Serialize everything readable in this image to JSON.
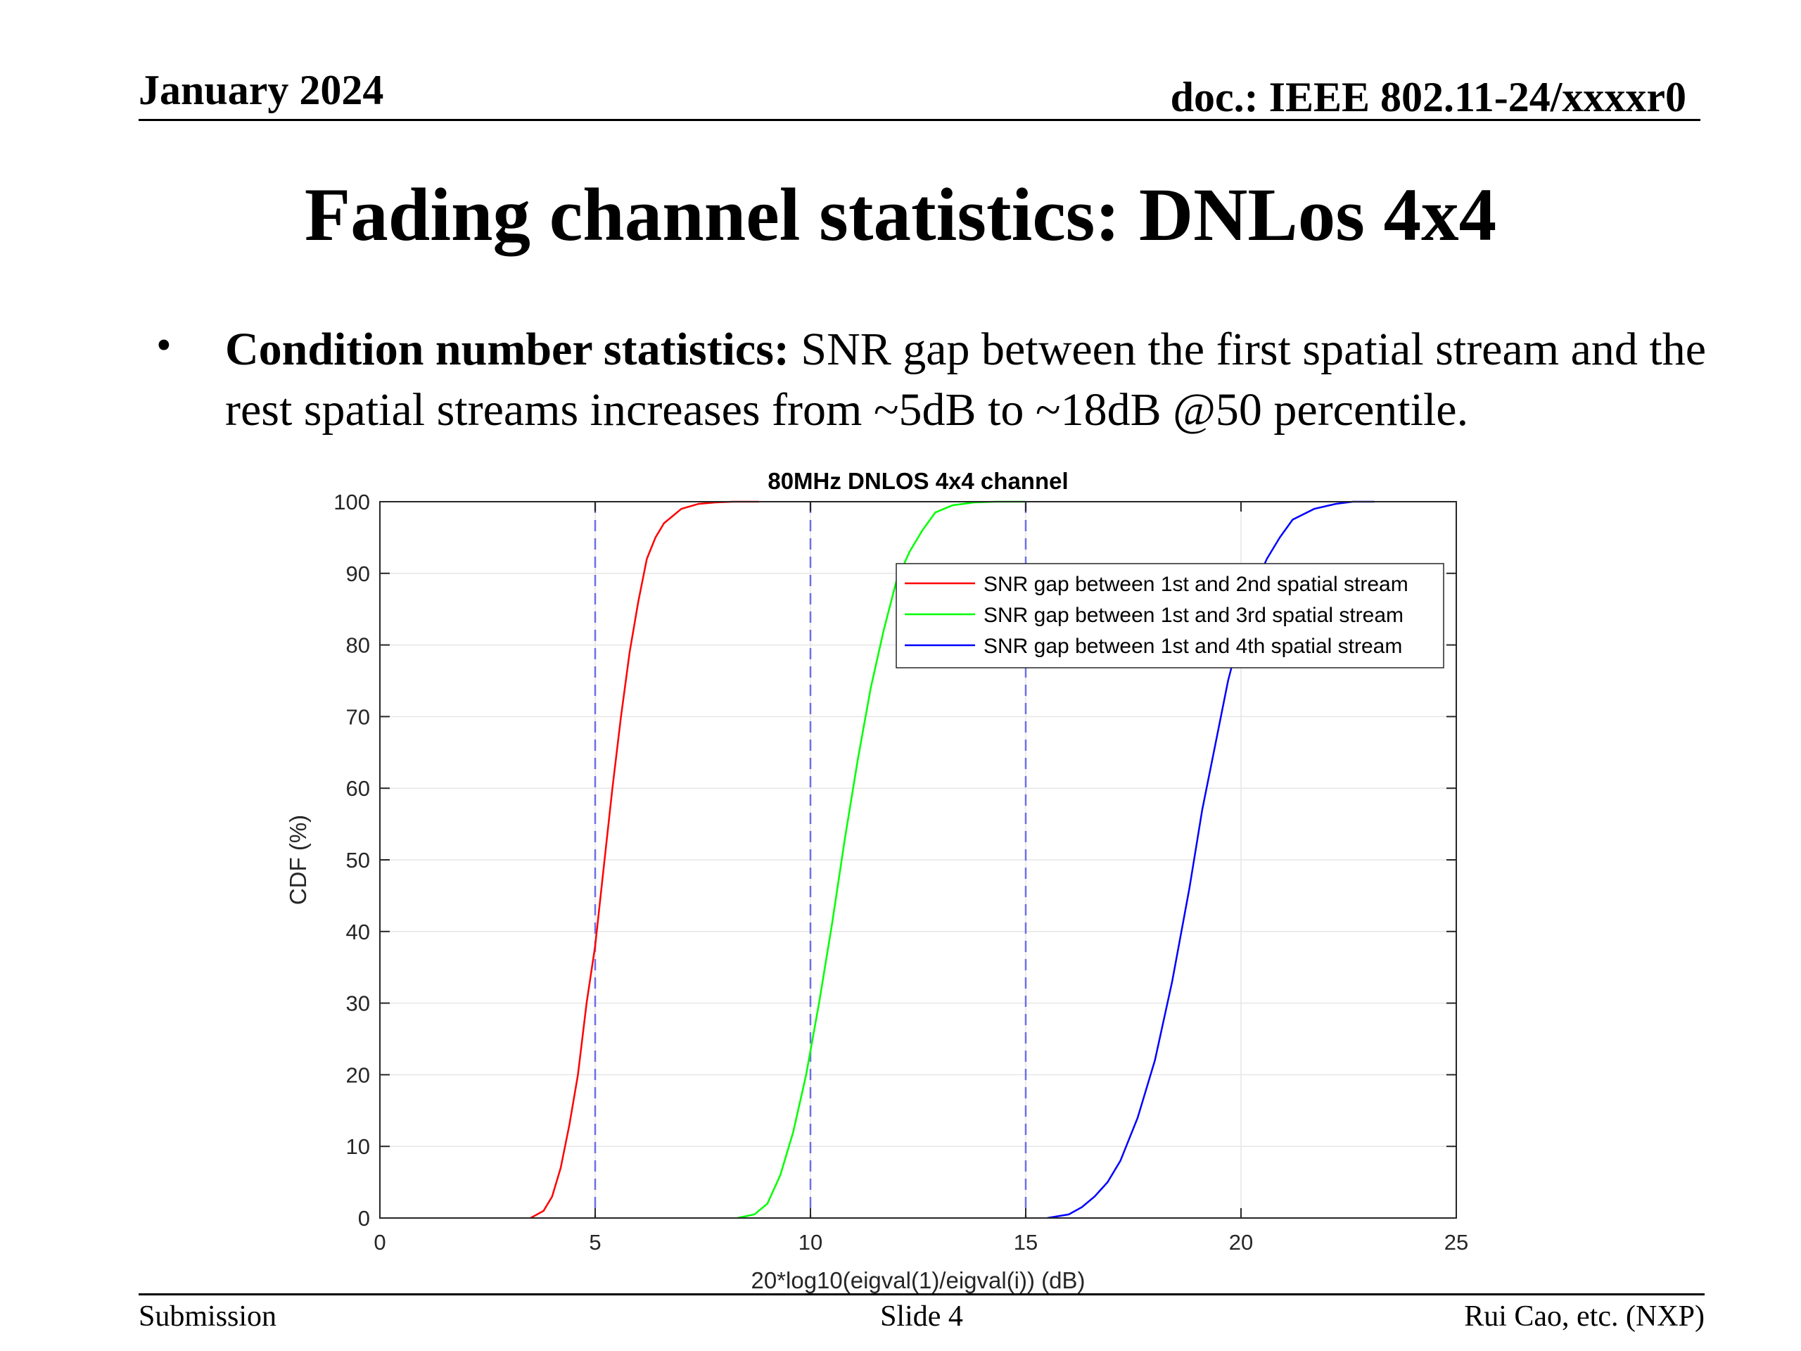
{
  "header": {
    "date": "January 2024",
    "doc": "doc.: IEEE 802.11-24/xxxxr0"
  },
  "slide": {
    "title": "Fading channel statistics: DNLos 4x4",
    "bullet_lead": "Condition number statistics:",
    "bullet_rest": " SNR gap between the first spatial stream and the rest spatial streams increases from ~5dB to ~18dB @50 percentile."
  },
  "footer": {
    "left": "Submission",
    "center": "Slide 4",
    "right": "Rui Cao, etc. (NXP)"
  },
  "chart_data": {
    "type": "line",
    "title": "80MHz DNLOS 4x4 channel",
    "xlabel": "20*log10(eigval(1)/eigval(i)) (dB)",
    "ylabel": "CDF (%)",
    "xlim": [
      0,
      25
    ],
    "ylim": [
      0,
      100
    ],
    "xticks": [
      0,
      5,
      10,
      15,
      20,
      25
    ],
    "yticks": [
      0,
      10,
      20,
      30,
      40,
      50,
      60,
      70,
      80,
      90,
      100
    ],
    "grid": true,
    "legend_position": "top-right",
    "vlines": [
      5,
      10,
      15
    ],
    "vline_color": "#6f6fe8",
    "series": [
      {
        "name": "SNR gap between 1st and 2nd spatial stream",
        "color": "#ff0000",
        "x": [
          3.5,
          3.8,
          4.0,
          4.2,
          4.4,
          4.6,
          4.8,
          5.0,
          5.2,
          5.4,
          5.6,
          5.8,
          6.0,
          6.2,
          6.4,
          6.6,
          6.8,
          7.0,
          7.4,
          7.8,
          8.2,
          8.8
        ],
        "y": [
          0,
          1,
          3,
          7,
          13,
          20,
          30,
          38,
          49,
          60,
          70,
          79,
          86,
          92,
          95,
          97,
          98,
          99,
          99.7,
          99.9,
          100,
          100
        ]
      },
      {
        "name": "SNR gap between 1st and 3rd spatial stream",
        "color": "#00ff00",
        "x": [
          8.3,
          8.7,
          9.0,
          9.3,
          9.6,
          9.9,
          10.2,
          10.5,
          10.8,
          11.1,
          11.4,
          11.7,
          12.0,
          12.3,
          12.6,
          12.9,
          13.3,
          13.8,
          14.3,
          15.0
        ],
        "y": [
          0,
          0.5,
          2,
          6,
          12,
          20,
          30,
          41,
          53,
          64,
          74,
          82,
          89,
          93,
          96,
          98.5,
          99.5,
          99.9,
          100,
          100
        ]
      },
      {
        "name": "SNR gap between 1st and 4th spatial stream",
        "color": "#0000ff",
        "x": [
          15.5,
          16.0,
          16.3,
          16.6,
          16.9,
          17.2,
          17.6,
          18.0,
          18.4,
          18.8,
          19.1,
          19.4,
          19.7,
          20.0,
          20.3,
          20.6,
          20.9,
          21.2,
          21.7,
          22.2,
          22.6,
          23.1
        ],
        "y": [
          0,
          0.5,
          1.5,
          3,
          5,
          8,
          14,
          22,
          33,
          46,
          57,
          66,
          75,
          82,
          88,
          92,
          95,
          97.5,
          99,
          99.7,
          100,
          100
        ]
      }
    ]
  }
}
